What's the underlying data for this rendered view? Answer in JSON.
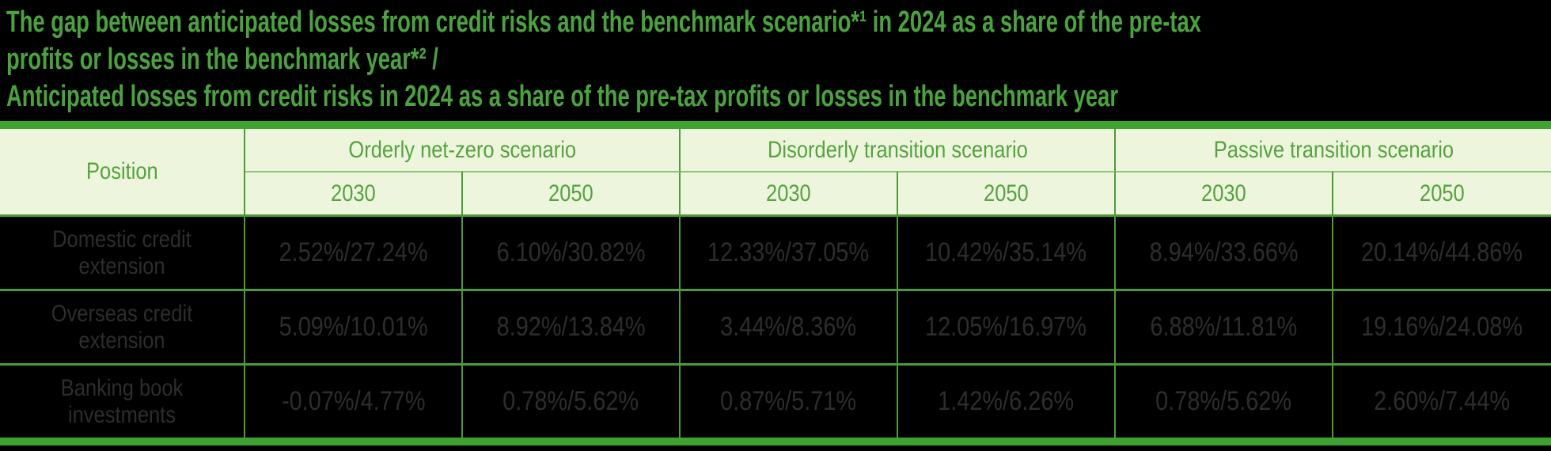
{
  "title": {
    "lines": [
      "The gap between anticipated losses from credit risks and the benchmark scenario*¹ in 2024 as a share of the pre-tax",
      "profits or losses in the benchmark year*² /",
      "Anticipated losses from credit risks in 2024 as a share of the pre-tax profits or losses in the benchmark year"
    ]
  },
  "table": {
    "position_header": "Position",
    "scenario_groups": [
      {
        "label": "Orderly net-zero scenario",
        "years": [
          "2030",
          "2050"
        ]
      },
      {
        "label": "Disorderly transition scenario",
        "years": [
          "2030",
          "2050"
        ]
      },
      {
        "label": "Passive transition scenario",
        "years": [
          "2030",
          "2050"
        ]
      }
    ],
    "rows": [
      {
        "position": "Domestic credit extension",
        "values": [
          "2.52%/27.24%",
          "6.10%/30.82%",
          "12.33%/37.05%",
          "10.42%/35.14%",
          "8.94%/33.66%",
          "20.14%/44.86%"
        ]
      },
      {
        "position": "Overseas credit extension",
        "values": [
          "5.09%/10.01%",
          "8.92%/13.84%",
          "3.44%/8.36%",
          "12.05%/16.97%",
          "6.88%/11.81%",
          "19.16%/24.08%"
        ]
      },
      {
        "position": "Banking book investments",
        "values": [
          "-0.07%/4.77%",
          "0.78%/5.62%",
          "0.87%/5.71%",
          "1.42%/6.26%",
          "0.78%/5.62%",
          "2.60%/7.44%"
        ]
      }
    ]
  },
  "colors": {
    "background": "#000000",
    "title_green": "#4aa43c",
    "table_border_green": "#4c9c35",
    "table_frame_bar_green": "#3da22e",
    "header_row_divider_green": "#8cc476",
    "header_bg": "#edf6dd",
    "header_text_green": "#55a23e",
    "data_text": "#2d2d30"
  }
}
